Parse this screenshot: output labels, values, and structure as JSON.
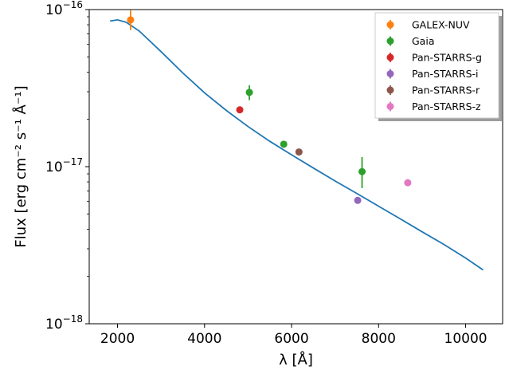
{
  "chart_data": {
    "type": "scatter",
    "xlabel": "λ [Å]",
    "ylabel": "Flux [erg cm⁻² s⁻¹ Å⁻¹]",
    "y_scale": "log",
    "xlim": [
      1350,
      10850
    ],
    "ylim": [
      1e-18,
      1e-16
    ],
    "x_ticks": [
      {
        "value": 2000,
        "label": "2000"
      },
      {
        "value": 4000,
        "label": "4000"
      },
      {
        "value": 6000,
        "label": "6000"
      },
      {
        "value": 8000,
        "label": "8000"
      },
      {
        "value": 10000,
        "label": "10000"
      }
    ],
    "y_ticks": [
      {
        "value": 1e-18,
        "base": "10",
        "exp": "−18"
      },
      {
        "value": 1e-17,
        "base": "10",
        "exp": "−17"
      },
      {
        "value": 1e-16,
        "base": "10",
        "exp": "−16"
      }
    ],
    "grid": false,
    "legend_position": "top-right",
    "model_curve": {
      "color": "#1f77b4",
      "x": [
        1830,
        2000,
        2200,
        2500,
        3000,
        3500,
        4000,
        4500,
        5000,
        5500,
        6000,
        6500,
        7000,
        7500,
        8000,
        8500,
        9000,
        9500,
        10000,
        10400
      ],
      "y": [
        8.45e-17,
        8.6e-17,
        8.3e-17,
        7.3e-17,
        5.4e-17,
        3.95e-17,
        2.95e-17,
        2.28e-17,
        1.8e-17,
        1.45e-17,
        1.19e-17,
        9.8e-18,
        8.1e-18,
        6.75e-18,
        5.6e-18,
        4.65e-18,
        3.85e-18,
        3.2e-18,
        2.62e-18,
        2.2e-18
      ]
    },
    "series": [
      {
        "name": "GALEX-NUV",
        "color": "#ff7f0e",
        "points": [
          {
            "x": 2300,
            "y": 8.6e-17,
            "ylo": 7.4e-17,
            "yhi": 9.9e-17
          }
        ]
      },
      {
        "name": "Gaia",
        "color": "#2ca02c",
        "points": [
          {
            "x": 5030,
            "y": 2.97e-17,
            "ylo": 2.65e-17,
            "yhi": 3.3e-17
          },
          {
            "x": 5820,
            "y": 1.39e-17,
            "ylo": 1.33e-17,
            "yhi": 1.45e-17
          },
          {
            "x": 7620,
            "y": 9.3e-18,
            "ylo": 7.3e-18,
            "yhi": 1.15e-17
          }
        ]
      },
      {
        "name": "Pan-STARRS-g",
        "color": "#d62728",
        "points": [
          {
            "x": 4810,
            "y": 2.3e-17,
            "ylo": 2.24e-17,
            "yhi": 2.36e-17
          }
        ]
      },
      {
        "name": "Pan-STARRS-i",
        "color": "#9467bd",
        "points": [
          {
            "x": 7520,
            "y": 6.1e-18,
            "ylo": 5.95e-18,
            "yhi": 6.25e-18
          }
        ]
      },
      {
        "name": "Pan-STARRS-r",
        "color": "#8c564b",
        "points": [
          {
            "x": 6170,
            "y": 1.24e-17,
            "ylo": 1.2e-17,
            "yhi": 1.28e-17
          }
        ]
      },
      {
        "name": "Pan-STARRS-z",
        "color": "#e377c2",
        "points": [
          {
            "x": 8670,
            "y": 7.9e-18,
            "ylo": 7.65e-18,
            "yhi": 8.15e-18
          }
        ]
      }
    ]
  }
}
